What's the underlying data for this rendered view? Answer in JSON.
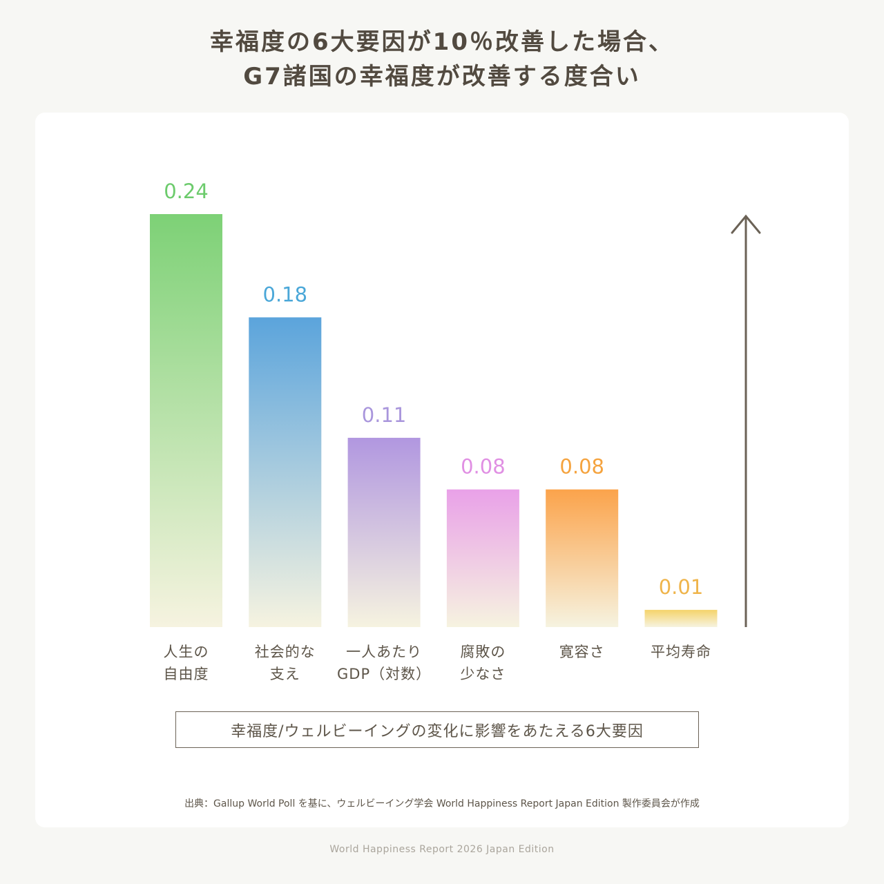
{
  "title": {
    "line1": "幸福度の6大要因が10％改善した場合、",
    "line2": "G7諸国の幸福度が改善する度合い"
  },
  "chart_data": {
    "type": "bar",
    "categories": [
      [
        "人生の",
        "自由度"
      ],
      [
        "社会的な",
        "支え"
      ],
      [
        "一人あたり",
        "GDP（対数）"
      ],
      [
        "腐敗の",
        "少なさ"
      ],
      [
        "寛容さ"
      ],
      [
        "平均寿命"
      ]
    ],
    "values": [
      0.24,
      0.18,
      0.11,
      0.08,
      0.08,
      0.01
    ],
    "value_labels": [
      "0.24",
      "0.18",
      "0.11",
      "0.08",
      "0.08",
      "0.01"
    ],
    "colors": [
      "#7dd176",
      "#5ba4dc",
      "#b197e0",
      "#e9a1e8",
      "#fba34b",
      "#f5d36a"
    ],
    "label_colors": [
      "#6ccb6c",
      "#4aa7d8",
      "#a996dc",
      "#e08fe3",
      "#f5a33e",
      "#efb44a"
    ],
    "bar_fade_color": "#f6f3e0",
    "arrow_color": "#6b6256",
    "xlabel": "幸福度/ウェルビーイングの変化に影響をあたえる6大要因",
    "ylabel": "",
    "ylim": [
      0,
      0.24
    ],
    "grid": false
  },
  "source": "出典：Gallup World Poll を基に、ウェルビーイング学会 World Happiness Report Japan Edition 製作委員会が作成",
  "footer": "World Happiness Report 2026 Japan Edition"
}
